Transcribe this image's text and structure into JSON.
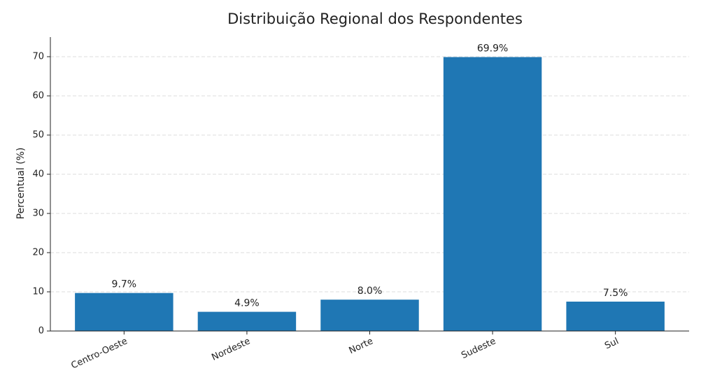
{
  "chart_data": {
    "type": "bar",
    "title": "Distribuição Regional dos Respondentes",
    "y_label": "Percentual (%)",
    "categories": [
      "Centro-Oeste",
      "Nordeste",
      "Norte",
      "Sudeste",
      "Sul"
    ],
    "values": [
      9.7,
      4.9,
      8.0,
      69.9,
      7.5
    ],
    "value_labels": [
      "9.7%",
      "4.9%",
      "8.0%",
      "69.9%",
      "7.5%"
    ],
    "color": "#1f77b4",
    "ylim": [
      0,
      75
    ],
    "yticks": [
      0,
      10,
      20,
      30,
      40,
      50,
      60,
      70
    ],
    "grid": true
  }
}
